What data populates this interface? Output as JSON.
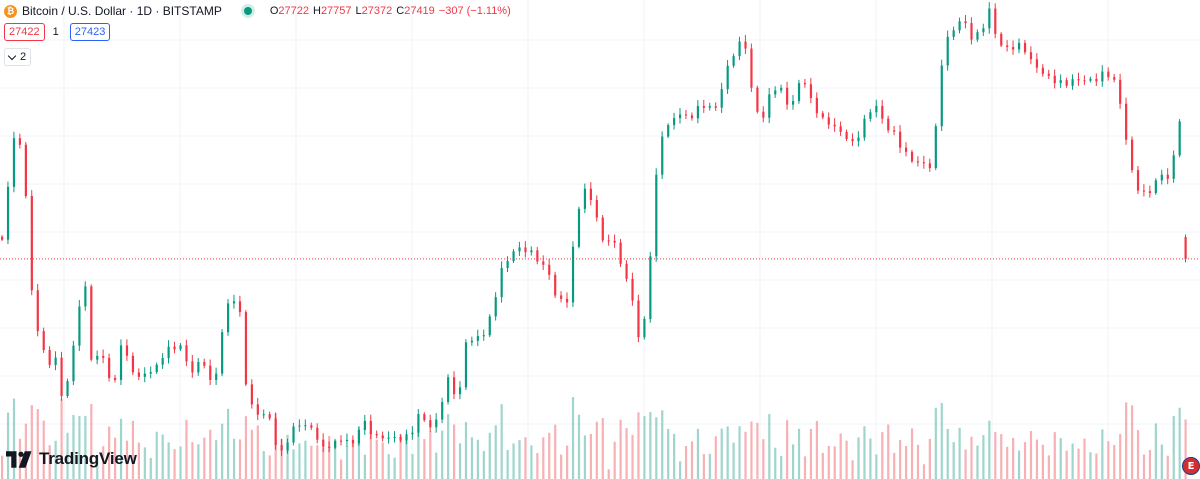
{
  "legend": {
    "symbol_title": "Bitcoin / U.S. Dollar · 1D · BITSTAMP",
    "coin_glyph": "₿",
    "open_label": "O",
    "open_value": "27722",
    "high_label": "H",
    "high_value": "27757",
    "low_label": "L",
    "low_value": "27372",
    "close_label": "C",
    "close_value": "27419",
    "change": "−307 (−1.11%)"
  },
  "price_boxes": {
    "sell": "27422",
    "spread": "1",
    "buy": "27423"
  },
  "indicators_toggle": {
    "count": "2"
  },
  "branding": {
    "name": "TradingView"
  },
  "flag_icon": {
    "glyph": "E"
  },
  "colors": {
    "up": "#089981",
    "down": "#f23645",
    "vol_up": "#9fd5cc",
    "vol_down": "#f7b1b5",
    "grid": "#f0f3fa",
    "price_line": "#f23645"
  },
  "chart_data": {
    "type": "candlestick",
    "symbol": "BTCUSD",
    "interval": "1D",
    "exchange": "BITSTAMP",
    "current_close": 27419,
    "grid": true,
    "legend_position": "top-left",
    "price_range": [
      24500,
      31000
    ],
    "anchors": [
      [
        0,
        27650
      ],
      [
        4,
        28420
      ],
      [
        8,
        29020
      ],
      [
        12,
        28950
      ],
      [
        18,
        27900
      ],
      [
        21,
        26450
      ],
      [
        24,
        26450
      ],
      [
        30,
        26000
      ],
      [
        36,
        26090
      ],
      [
        41,
        25450
      ],
      [
        48,
        26200
      ],
      [
        55,
        27200
      ],
      [
        60,
        26000
      ],
      [
        68,
        26020
      ],
      [
        75,
        25600
      ],
      [
        80,
        26300
      ],
      [
        84,
        26100
      ],
      [
        91,
        25800
      ],
      [
        97,
        25850
      ],
      [
        103,
        25850
      ],
      [
        110,
        26100
      ],
      [
        115,
        26150
      ],
      [
        120,
        26200
      ],
      [
        127,
        25880
      ],
      [
        135,
        26100
      ],
      [
        140,
        25750
      ],
      [
        145,
        25900
      ],
      [
        150,
        26700
      ],
      [
        155,
        26850
      ],
      [
        160,
        26600
      ],
      [
        165,
        25450
      ],
      [
        170,
        25300
      ],
      [
        176,
        25300
      ],
      [
        181,
        25250
      ],
      [
        186,
        24700
      ],
      [
        195,
        25050
      ],
      [
        200,
        25100
      ],
      [
        210,
        25000
      ],
      [
        215,
        24750
      ],
      [
        220,
        24850
      ],
      [
        230,
        25000
      ],
      [
        236,
        24900
      ],
      [
        240,
        25100
      ],
      [
        245,
        25150
      ],
      [
        250,
        24900
      ],
      [
        260,
        24900
      ],
      [
        270,
        24950
      ],
      [
        275,
        25050
      ],
      [
        281,
        25350
      ],
      [
        290,
        25050
      ],
      [
        300,
        25700
      ],
      [
        307,
        25400
      ],
      [
        312,
        26250
      ],
      [
        317,
        26300
      ],
      [
        326,
        26480
      ],
      [
        336,
        27300
      ],
      [
        345,
        27530
      ],
      [
        355,
        27470
      ],
      [
        362,
        27350
      ],
      [
        368,
        27230
      ],
      [
        373,
        26900
      ],
      [
        380,
        26900
      ],
      [
        387,
        28100
      ],
      [
        392,
        28350
      ],
      [
        398,
        28120
      ],
      [
        404,
        27600
      ],
      [
        410,
        27700
      ],
      [
        418,
        27300
      ],
      [
        424,
        26900
      ],
      [
        430,
        26150
      ],
      [
        436,
        27500
      ],
      [
        442,
        29050
      ],
      [
        448,
        29200
      ],
      [
        455,
        29400
      ],
      [
        462,
        29350
      ],
      [
        470,
        29600
      ],
      [
        480,
        29550
      ],
      [
        488,
        30050
      ],
      [
        495,
        30350
      ],
      [
        500,
        30300
      ],
      [
        506,
        29450
      ],
      [
        512,
        29400
      ],
      [
        518,
        29850
      ],
      [
        525,
        29800
      ],
      [
        530,
        29500
      ],
      [
        538,
        29950
      ],
      [
        545,
        29500
      ],
      [
        552,
        29300
      ],
      [
        560,
        29250
      ],
      [
        568,
        29150
      ],
      [
        573,
        29050
      ],
      [
        580,
        29350
      ],
      [
        587,
        29550
      ],
      [
        594,
        29200
      ],
      [
        600,
        29100
      ],
      [
        606,
        28900
      ],
      [
        613,
        28800
      ],
      [
        618,
        28800
      ],
      [
        624,
        28750
      ],
      [
        628,
        29250
      ],
      [
        633,
        30350
      ],
      [
        640,
        30550
      ],
      [
        646,
        30700
      ],
      [
        652,
        30450
      ],
      [
        658,
        30550
      ],
      [
        664,
        30900
      ],
      [
        670,
        30450
      ],
      [
        677,
        30350
      ],
      [
        686,
        30350
      ],
      [
        692,
        30100
      ],
      [
        700,
        29950
      ],
      [
        708,
        29900
      ],
      [
        716,
        29900
      ],
      [
        722,
        29950
      ],
      [
        728,
        29900
      ],
      [
        735,
        29850
      ],
      [
        742,
        29950
      ],
      [
        750,
        29800
      ],
      [
        755,
        29200
      ],
      [
        762,
        28450
      ],
      [
        766,
        28450
      ],
      [
        770,
        28300
      ],
      [
        774,
        28500
      ],
      [
        778,
        28500
      ],
      [
        782,
        28650
      ],
      [
        786,
        28350
      ],
      [
        790,
        29200
      ],
      [
        793,
        29350
      ],
      [
        797,
        29130
      ]
    ],
    "last_candle": {
      "open": 27722,
      "high": 27757,
      "low": 27372,
      "close": 27419
    },
    "volume_relative": true
  }
}
